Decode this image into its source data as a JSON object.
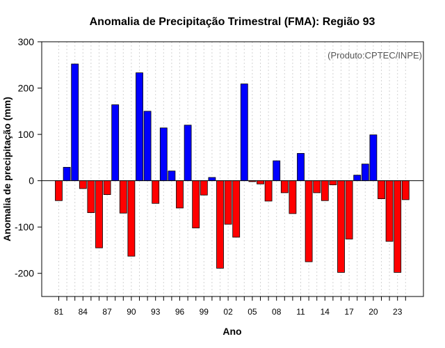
{
  "chart_data": {
    "type": "bar",
    "title": "Anomalia de Precipitação Trimestral (FMA): Região 93",
    "xlabel": "Ano",
    "ylabel": "Anomalia de precipitação (mm)",
    "credit": "(Produto:CPTEC/INPE)",
    "ylim": [
      -250,
      300
    ],
    "yticks": [
      -200,
      -100,
      0,
      100,
      200,
      300
    ],
    "ytick_labels": [
      "-200",
      "-100",
      "0",
      "100",
      "200",
      "300"
    ],
    "years": [
      1981,
      1982,
      1983,
      1984,
      1985,
      1986,
      1987,
      1988,
      1989,
      1990,
      1991,
      1992,
      1993,
      1994,
      1995,
      1996,
      1997,
      1998,
      1999,
      2000,
      2001,
      2002,
      2003,
      2004,
      2005,
      2006,
      2007,
      2008,
      2009,
      2010,
      2011,
      2012,
      2013,
      2014,
      2015,
      2016,
      2017,
      2018,
      2019,
      2020,
      2021,
      2022,
      2023,
      2024
    ],
    "values": [
      -43,
      29,
      252,
      -17,
      -69,
      -145,
      -30,
      164,
      -70,
      -163,
      233,
      150,
      -49,
      114,
      21,
      -59,
      120,
      -102,
      -31,
      7,
      -189,
      -94,
      -122,
      209,
      -2,
      -7,
      -44,
      43,
      -26,
      -71,
      59,
      -175,
      -26,
      -43,
      -9,
      -198,
      -126,
      12,
      36,
      99,
      -39,
      -131,
      -198,
      -41
    ],
    "xtick_labels": [
      "81",
      "84",
      "87",
      "90",
      "93",
      "96",
      "99",
      "02",
      "05",
      "08",
      "11",
      "14",
      "17",
      "20",
      "23"
    ],
    "xtick_years": [
      1981,
      1984,
      1987,
      1990,
      1993,
      1996,
      1999,
      2002,
      2005,
      2008,
      2011,
      2014,
      2017,
      2020,
      2023
    ],
    "grid": "vertical dotted",
    "colors": {
      "positive": "#0000ff",
      "negative": "#ff0000",
      "outline": "#000000",
      "grid": "#d3d3d3"
    }
  }
}
